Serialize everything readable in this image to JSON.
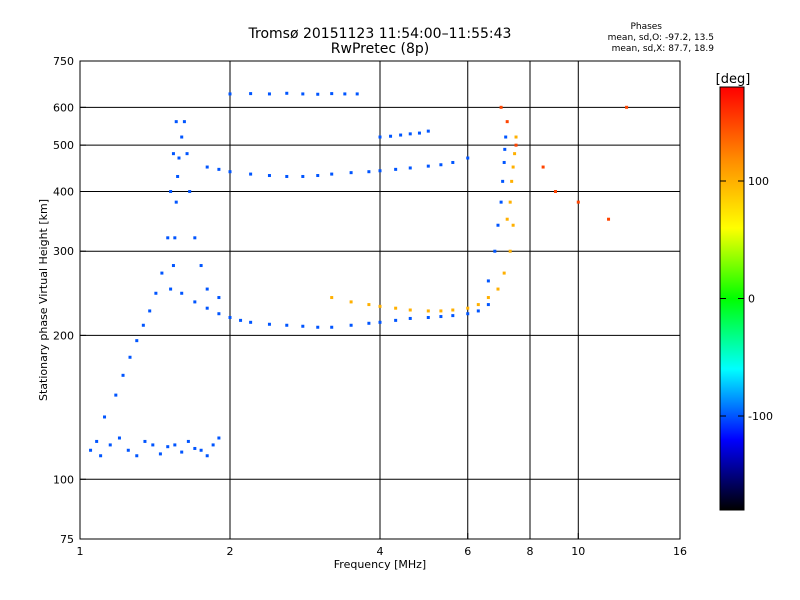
{
  "header": {
    "title": "Tromsø 20151123 11:54:00–11:55:43",
    "subtitle": "RwPretec (8p)"
  },
  "phase_stats": {
    "title": "Phases",
    "o_line": "mean, sd,O: -97.2, 13.5",
    "x_line": "mean, sd,X: 87.7, 18.9"
  },
  "colorbar": {
    "label": "[deg]",
    "min": -180,
    "max": 180,
    "ticks": [
      100,
      0,
      -100
    ],
    "tick_labels": [
      "100",
      "0",
      "-100"
    ],
    "colors": [
      "#ff0000",
      "#ff8800",
      "#ffff00",
      "#00ff00",
      "#00ffff",
      "#0000ff",
      "#000000"
    ]
  },
  "chart_data": {
    "type": "scatter",
    "title": "Tromsø 20151123 11:54:00–11:55:43",
    "subtitle": "RwPretec (8p)",
    "xlabel": "Frequency [MHz]",
    "ylabel": "Stationary phase Virtual Height [km]",
    "xscale": "log",
    "yscale": "log",
    "xlim": [
      1,
      16
    ],
    "ylim": [
      75,
      750
    ],
    "xticks": [
      1,
      2,
      4,
      6,
      8,
      10,
      16
    ],
    "xtick_labels": [
      "1",
      "2",
      "4",
      "6",
      "8",
      "10",
      "16"
    ],
    "yticks": [
      75,
      100,
      200,
      300,
      400,
      500,
      600,
      750
    ],
    "ytick_labels": [
      "75",
      "100",
      "200",
      "300",
      "400",
      "500",
      "600",
      "750"
    ],
    "grid": true,
    "color_encoding": "phase [deg]",
    "series": [
      {
        "x": [
          1.05,
          1.1,
          1.15,
          1.2,
          1.25,
          1.3,
          1.35,
          1.4,
          1.45,
          1.5,
          1.55,
          1.6,
          1.65,
          1.7,
          1.75,
          1.8,
          1.85,
          1.9
        ],
        "y": [
          115,
          112,
          118,
          122,
          115,
          112,
          120,
          118,
          113,
          117,
          118,
          114,
          120,
          116,
          115,
          112,
          118,
          122
        ],
        "phase": -100
      },
      {
        "x": [
          1.08,
          1.12,
          1.18,
          1.22,
          1.26,
          1.3,
          1.34,
          1.38,
          1.42,
          1.46,
          1.5,
          1.52,
          1.54,
          1.56
        ],
        "y": [
          120,
          135,
          150,
          165,
          180,
          195,
          210,
          225,
          245,
          270,
          320,
          400,
          480,
          560
        ],
        "phase": -100
      },
      {
        "x": [
          1.52,
          1.54,
          1.55,
          1.56,
          1.57,
          1.58,
          1.6,
          1.62,
          1.64,
          1.66,
          1.7,
          1.75,
          1.8,
          1.9
        ],
        "y": [
          250,
          280,
          320,
          380,
          430,
          470,
          520,
          560,
          480,
          400,
          320,
          280,
          250,
          240
        ],
        "phase": -100
      },
      {
        "x": [
          1.6,
          1.7,
          1.8,
          1.9,
          2.0,
          2.1,
          2.2,
          2.4,
          2.6,
          2.8,
          3.0,
          3.2,
          3.5,
          3.8,
          4.0,
          4.3,
          4.6,
          5.0,
          5.3,
          5.6,
          6.0,
          6.3,
          6.6
        ],
        "y": [
          245,
          235,
          228,
          222,
          218,
          215,
          213,
          211,
          210,
          209,
          208,
          208,
          210,
          212,
          213,
          215,
          217,
          218,
          219,
          220,
          222,
          225,
          232
        ],
        "phase": -100
      },
      {
        "x": [
          3.2,
          3.5,
          3.8,
          4.0,
          4.3,
          4.6,
          5.0,
          5.3,
          5.6,
          6.0,
          6.3,
          6.6,
          6.9,
          7.1,
          7.3,
          7.4
        ],
        "y": [
          240,
          235,
          232,
          230,
          228,
          226,
          225,
          225,
          226,
          228,
          232,
          240,
          250,
          270,
          300,
          340
        ],
        "phase": 100
      },
      {
        "x": [
          6.6,
          6.8,
          6.9,
          7.0,
          7.05,
          7.1,
          7.12,
          7.15
        ],
        "y": [
          260,
          300,
          340,
          380,
          420,
          460,
          490,
          520
        ],
        "phase": -100
      },
      {
        "x": [
          7.2,
          7.3,
          7.35,
          7.4,
          7.45,
          7.5
        ],
        "y": [
          350,
          380,
          420,
          450,
          480,
          520
        ],
        "phase": 100
      },
      {
        "x": [
          1.8,
          1.9,
          2.0,
          2.2,
          2.4,
          2.6,
          2.8,
          3.0,
          3.2,
          3.5,
          3.8,
          4.0,
          4.3,
          4.6,
          5.0,
          5.3,
          5.6,
          6.0
        ],
        "y": [
          450,
          445,
          440,
          435,
          432,
          430,
          430,
          432,
          435,
          438,
          440,
          442,
          445,
          448,
          452,
          455,
          460,
          470
        ],
        "phase": -100
      },
      {
        "x": [
          4.0,
          4.2,
          4.4,
          4.6,
          4.8,
          5.0
        ],
        "y": [
          520,
          522,
          525,
          528,
          530,
          535
        ],
        "phase": -100
      },
      {
        "x": [
          2.0,
          2.2,
          2.4,
          2.6,
          2.8,
          3.0,
          3.2,
          3.4,
          3.6
        ],
        "y": [
          640,
          641,
          640,
          642,
          640,
          639,
          641,
          640,
          640
        ],
        "phase": -100
      },
      {
        "x": [
          7.0,
          7.2,
          7.5,
          8.5,
          9.0,
          10.0,
          11.5,
          12.5
        ],
        "y": [
          600,
          560,
          500,
          450,
          400,
          380,
          350,
          600
        ],
        "phase": 150
      }
    ]
  }
}
